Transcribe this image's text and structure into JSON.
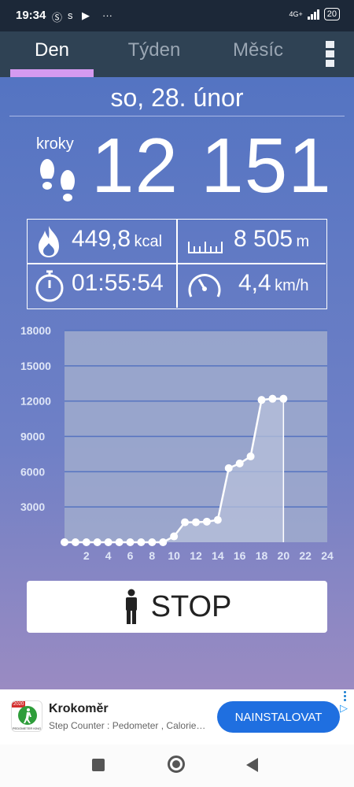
{
  "status": {
    "time": "19:34",
    "network": "4G+",
    "battery": "20"
  },
  "tabs": [
    {
      "label": "Den",
      "active": true
    },
    {
      "label": "Týden",
      "active": false
    },
    {
      "label": "Měsíc",
      "active": false
    }
  ],
  "date": "so, 28. únor",
  "steps": {
    "label": "kroky",
    "value": "12 151"
  },
  "stats": {
    "calories": {
      "value": "449,8",
      "unit": "kcal"
    },
    "distance": {
      "value": "8 505",
      "unit": "m"
    },
    "duration": {
      "value": "01:55:54"
    },
    "speed": {
      "value": "4,4",
      "unit": "km/h"
    }
  },
  "chart_data": {
    "type": "area",
    "x": [
      0,
      1,
      2,
      3,
      4,
      5,
      6,
      7,
      8,
      9,
      10,
      11,
      12,
      13,
      14,
      15,
      16,
      17,
      18,
      19,
      20
    ],
    "values": [
      0,
      0,
      0,
      0,
      0,
      0,
      0,
      0,
      0,
      0,
      500,
      1700,
      1700,
      1750,
      1900,
      6300,
      6700,
      7300,
      12100,
      12200,
      12200
    ],
    "xticks": [
      "2",
      "4",
      "6",
      "8",
      "10",
      "12",
      "14",
      "16",
      "18",
      "20",
      "22",
      "24"
    ],
    "xtick_values": [
      2,
      4,
      6,
      8,
      10,
      12,
      14,
      16,
      18,
      20,
      22,
      24
    ],
    "yticks": [
      "3000",
      "6000",
      "9000",
      "12000",
      "15000",
      "18000"
    ],
    "ytick_values": [
      3000,
      6000,
      9000,
      12000,
      15000,
      18000
    ],
    "xlim": [
      0,
      24
    ],
    "ylim": [
      0,
      18000
    ],
    "grid": true,
    "colors": {
      "fill": "#b7c0db",
      "line": "#ffffff",
      "grid": "#5573c0",
      "plot_bg": "#a0accd"
    }
  },
  "stop_button": {
    "label": "STOP"
  },
  "ad": {
    "title": "Krokoměr",
    "subtitle": "Step Counter : Pedometer , Calorie…",
    "install_label": "NAINSTALOVAT",
    "icon_badge": "2020",
    "icon_caption": "PEDOMETER KING"
  }
}
